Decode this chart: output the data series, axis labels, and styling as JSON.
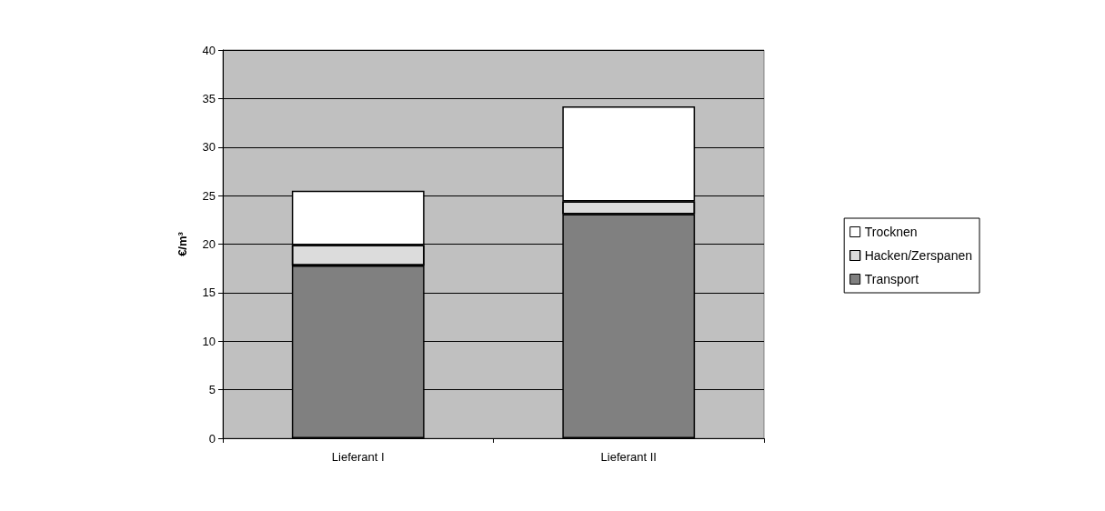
{
  "chart_data": {
    "type": "bar",
    "ylabel": "€/m³",
    "categories": [
      "Lieferant I",
      "Lieferant II"
    ],
    "series": [
      {
        "name": "Transport",
        "color": "#808080",
        "values": [
          17.8,
          23.1
        ]
      },
      {
        "name": "Hacken/Zerspanen",
        "color": "#dcdcdc",
        "values": [
          2.1,
          1.3
        ]
      },
      {
        "name": "Trocknen",
        "color": "#ffffff",
        "values": [
          5.6,
          9.8
        ]
      }
    ],
    "stacked": true,
    "ylim": [
      0,
      40
    ],
    "yticks": [
      0,
      5,
      10,
      15,
      20,
      25,
      30,
      35,
      40
    ],
    "grid": "y",
    "legend": "right"
  }
}
